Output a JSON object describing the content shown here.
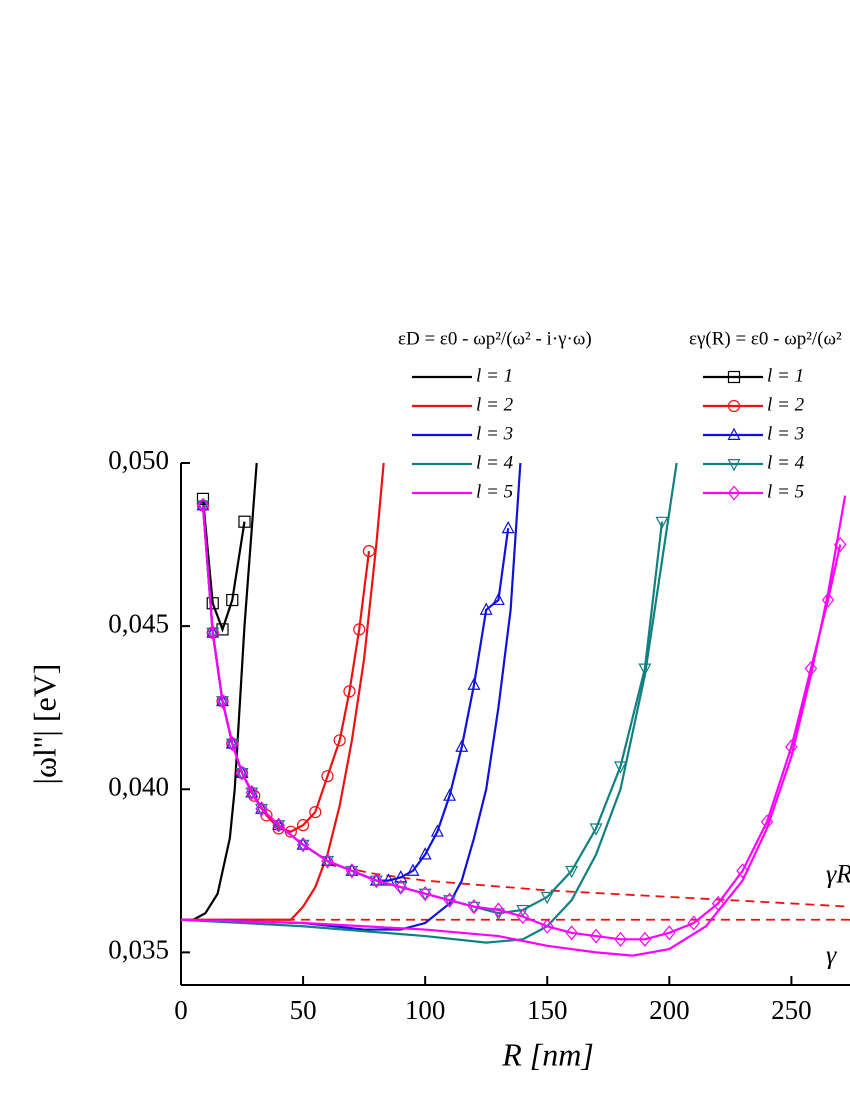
{
  "chart_data": {
    "type": "line",
    "x_label": "R [nm]",
    "y_label": "|ωl''| [eV]",
    "xlim": [
      0,
      274
    ],
    "ylim": [
      0.034,
      0.05
    ],
    "xticks": [
      0,
      50,
      100,
      150,
      200,
      250
    ],
    "yticks": [
      {
        "value": 0.035,
        "label": "0,035"
      },
      {
        "value": 0.04,
        "label": "0,040"
      },
      {
        "value": 0.045,
        "label": "0,045"
      },
      {
        "value": 0.05,
        "label": "0,050"
      }
    ],
    "groups": [
      {
        "title": "εD = ε0 - ωp²/(ω² - i·γ·ω)",
        "series": [
          {
            "name": "l = 1",
            "color": "#000000",
            "marker": "none",
            "x": [
              5,
              10,
              15,
              20,
              22,
              26,
              31
            ],
            "values": [
              0.036,
              0.0362,
              0.0368,
              0.0385,
              0.04,
              0.045,
              0.05
            ]
          },
          {
            "name": "l = 2",
            "color": "#ee1111",
            "marker": "none",
            "x": [
              0,
              45,
              50,
              55,
              60,
              65,
              70,
              75,
              80,
              83
            ],
            "values": [
              0.036,
              0.036,
              0.0364,
              0.037,
              0.038,
              0.0395,
              0.0415,
              0.044,
              0.0475,
              0.05
            ]
          },
          {
            "name": "l = 3",
            "color": "#1111dd",
            "marker": "none",
            "x": [
              0,
              50,
              75,
              90,
              100,
              110,
              115,
              120,
              125,
              130,
              135,
              139
            ],
            "values": [
              0.036,
              0.0359,
              0.0357,
              0.0357,
              0.0359,
              0.0365,
              0.0372,
              0.0385,
              0.04,
              0.0425,
              0.0455,
              0.05
            ]
          },
          {
            "name": "l = 4",
            "color": "#118080",
            "marker": "none",
            "x": [
              0,
              50,
              100,
              125,
              140,
              150,
              160,
              170,
              180,
              190,
              197,
              203
            ],
            "values": [
              0.036,
              0.0358,
              0.0355,
              0.0353,
              0.0354,
              0.0358,
              0.0366,
              0.038,
              0.04,
              0.0435,
              0.047,
              0.05
            ]
          },
          {
            "name": "l = 5",
            "color": "#ff00ff",
            "marker": "none",
            "x": [
              0,
              50,
              100,
              130,
              150,
              170,
              185,
              200,
              215,
              230,
              240,
              250,
              258,
              265,
              272
            ],
            "values": [
              0.036,
              0.0359,
              0.0357,
              0.0355,
              0.0352,
              0.035,
              0.0349,
              0.0351,
              0.0358,
              0.0372,
              0.0388,
              0.041,
              0.0435,
              0.046,
              0.049
            ]
          }
        ]
      },
      {
        "title": "εγ(R) = ε0 - ωp²/(ω²",
        "series": [
          {
            "name": "l = 1",
            "color": "#000000",
            "marker": "square",
            "x": [
              9,
              13,
              17,
              21,
              26
            ],
            "values": [
              0.0489,
              0.0457,
              0.0449,
              0.0458,
              0.0482
            ]
          },
          {
            "name": "l = 2",
            "color": "#ee1111",
            "marker": "circle",
            "x": [
              9,
              13,
              17,
              21,
              25,
              30,
              35,
              40,
              45,
              50,
              55,
              60,
              65,
              69,
              73,
              77
            ],
            "values": [
              0.0487,
              0.0448,
              0.0427,
              0.0414,
              0.0405,
              0.0398,
              0.0392,
              0.0388,
              0.0387,
              0.0389,
              0.0393,
              0.0404,
              0.0415,
              0.043,
              0.0449,
              0.0473
            ]
          },
          {
            "name": "l = 3",
            "color": "#1111dd",
            "marker": "triangle-up",
            "x": [
              9,
              13,
              17,
              21,
              25,
              29,
              33,
              40,
              50,
              60,
              70,
              80,
              85,
              90,
              95,
              100,
              105,
              110,
              115,
              120,
              125,
              130,
              134
            ],
            "values": [
              0.0487,
              0.0448,
              0.0427,
              0.0414,
              0.0405,
              0.0399,
              0.0394,
              0.0389,
              0.0383,
              0.0378,
              0.0375,
              0.0372,
              0.0372,
              0.0373,
              0.0375,
              0.038,
              0.0387,
              0.0398,
              0.0413,
              0.0432,
              0.0455,
              0.0458,
              0.048
            ]
          },
          {
            "name": "l = 4",
            "color": "#118080",
            "marker": "triangle-down",
            "x": [
              9,
              13,
              17,
              21,
              25,
              29,
              33,
              40,
              50,
              60,
              70,
              80,
              90,
              100,
              110,
              120,
              130,
              140,
              150,
              160,
              170,
              180,
              190,
              197
            ],
            "values": [
              0.0487,
              0.0448,
              0.0427,
              0.0414,
              0.0405,
              0.0399,
              0.0394,
              0.0389,
              0.0383,
              0.0378,
              0.0375,
              0.0372,
              0.037,
              0.0368,
              0.0366,
              0.0364,
              0.0362,
              0.0363,
              0.0367,
              0.0375,
              0.0388,
              0.0407,
              0.0437,
              0.0482
            ]
          },
          {
            "name": "l = 5",
            "color": "#ff00ff",
            "marker": "diamond",
            "x": [
              9,
              13,
              17,
              21,
              25,
              29,
              33,
              40,
              50,
              60,
              70,
              80,
              90,
              100,
              110,
              120,
              130,
              140,
              150,
              160,
              170,
              180,
              190,
              200,
              210,
              220,
              230,
              240,
              250,
              258,
              265,
              270
            ],
            "values": [
              0.0487,
              0.0448,
              0.0427,
              0.0414,
              0.0405,
              0.0399,
              0.0394,
              0.0389,
              0.0383,
              0.0378,
              0.0375,
              0.0372,
              0.037,
              0.0368,
              0.0366,
              0.0364,
              0.0363,
              0.0361,
              0.0358,
              0.0356,
              0.0355,
              0.0354,
              0.0354,
              0.0356,
              0.0359,
              0.0365,
              0.0375,
              0.039,
              0.0413,
              0.0437,
              0.0458,
              0.0475
            ]
          }
        ]
      }
    ],
    "reference_lines": [
      {
        "label": "γR",
        "color": "#ee1111",
        "x": [
          60,
          80,
          100,
          150,
          200,
          250,
          274
        ],
        "values": [
          0.0377,
          0.0374,
          0.0372,
          0.0369,
          0.0367,
          0.0365,
          0.0364
        ]
      },
      {
        "label": "γ",
        "color": "#ee1111",
        "x": [
          0,
          274
        ],
        "values": [
          0.036,
          0.036
        ]
      }
    ]
  }
}
